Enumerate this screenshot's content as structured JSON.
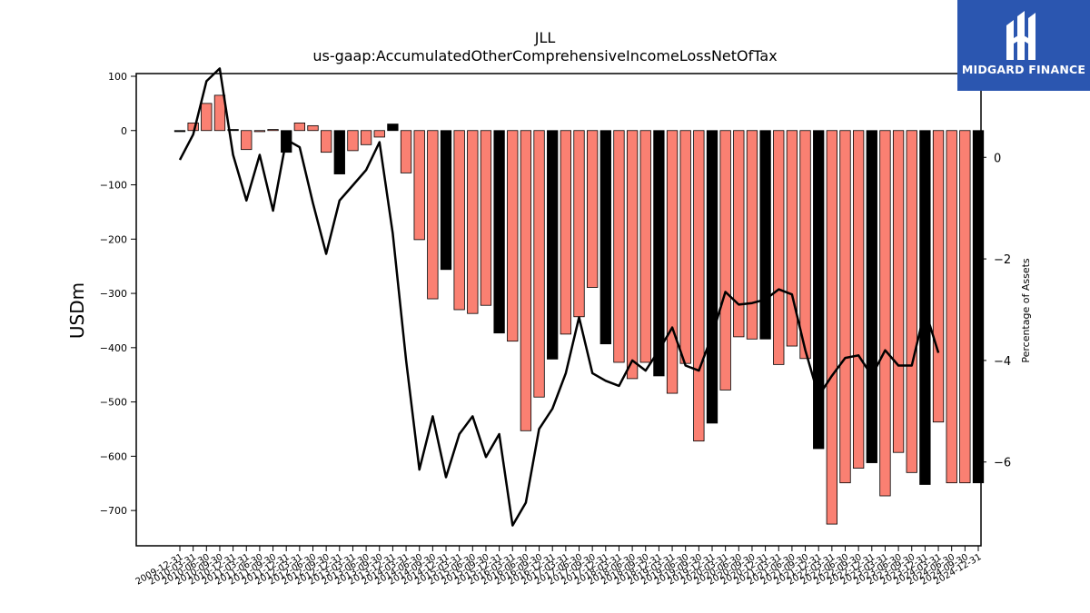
{
  "chart_data": {
    "type": "bar+line",
    "title": "JLL",
    "subtitle": "us-gaap:AccumulatedOtherComprehensiveIncomeLossNetOfTax",
    "ylabel": "USDm",
    "y2label": "Percentage of Assets",
    "ylim": [
      -765,
      105
    ],
    "y2lim": [
      -7.65,
      1.65
    ],
    "yticks": [
      100,
      0,
      -100,
      -200,
      -300,
      -400,
      -500,
      -600,
      -700
    ],
    "y2ticks": [
      0,
      -2,
      -4,
      -6
    ],
    "categories": [
      "2009-12-31",
      "2010-03-31",
      "2010-06-30",
      "2010-09-30",
      "2010-12-31",
      "2011-03-31",
      "2011-06-30",
      "2011-09-30",
      "2011-12-31",
      "2012-03-31",
      "2012-06-30",
      "2012-09-30",
      "2012-12-31",
      "2013-03-31",
      "2013-06-30",
      "2013-09-30",
      "2013-12-31",
      "2014-03-31",
      "2014-06-30",
      "2014-09-30",
      "2014-12-31",
      "2015-03-31",
      "2015-06-30",
      "2015-09-30",
      "2015-12-31",
      "2016-03-31",
      "2016-06-30",
      "2016-09-30",
      "2016-12-31",
      "2017-03-31",
      "2017-06-30",
      "2017-09-30",
      "2017-12-31",
      "2018-03-31",
      "2018-06-30",
      "2018-09-30",
      "2018-12-31",
      "2019-03-31",
      "2019-06-30",
      "2019-09-30",
      "2019-12-31",
      "2020-03-31",
      "2020-06-30",
      "2020-09-30",
      "2020-12-31",
      "2021-03-31",
      "2021-06-30",
      "2021-09-30",
      "2021-12-31",
      "2022-03-31",
      "2022-06-30",
      "2022-09-30",
      "2022-12-31",
      "2023-03-31",
      "2023-06-30",
      "2023-09-30",
      "2023-12-31",
      "2024-03-31",
      "2024-06-30",
      "2024-09-30",
      "2024-12-31"
    ],
    "series": [
      {
        "kind": "bar",
        "values": [
          -2,
          14,
          50,
          65,
          2,
          -35,
          -2,
          2,
          -40,
          14,
          9,
          -40,
          -80,
          -37,
          -26,
          -12,
          12,
          -78,
          -201,
          -310,
          -256,
          -330,
          -337,
          -322,
          -373,
          -388,
          -553,
          -491,
          -421,
          -375,
          -343,
          -289,
          -393,
          -427,
          -457,
          -427,
          -452,
          -484,
          -429,
          -572,
          -539,
          -478,
          -380,
          -384,
          -384,
          -431,
          -397,
          -420,
          -586,
          -725,
          -649,
          -622,
          -612,
          -673,
          -593,
          -630,
          -652,
          -537,
          -649,
          -649,
          -649
        ],
        "year_end_color": "#000000",
        "quarter_color": "#fa8072"
      },
      {
        "kind": "line",
        "axis": "right",
        "color": "#000000",
        "values": [
          -0.05,
          0.45,
          1.5,
          1.75,
          0.05,
          -0.85,
          0.05,
          -1.05,
          0.35,
          0.2,
          -0.9,
          -1.9,
          -0.85,
          -0.55,
          -0.25,
          0.3,
          -1.5,
          -4.0,
          -6.15,
          -5.1,
          -6.3,
          -5.45,
          -5.1,
          -5.9,
          -5.45,
          -7.25,
          -6.8,
          -5.35,
          -4.95,
          -4.25,
          -3.15,
          -4.25,
          -4.4,
          -4.5,
          -4.0,
          -4.2,
          -3.8,
          -3.35,
          -4.1,
          -4.2,
          -3.5,
          -2.65,
          -2.9,
          -2.87,
          -2.8,
          -2.6,
          -2.7,
          -3.8,
          -4.7,
          -4.3,
          -3.95,
          -3.9,
          -4.3,
          -3.8,
          -4.1,
          -4.1,
          -3.0,
          -3.85,
          null,
          null,
          null
        ]
      }
    ],
    "grid": false
  },
  "brand": {
    "name": "MIDGARD FINANCE",
    "background": "#2b56b0",
    "text_color": "#ffffff"
  }
}
